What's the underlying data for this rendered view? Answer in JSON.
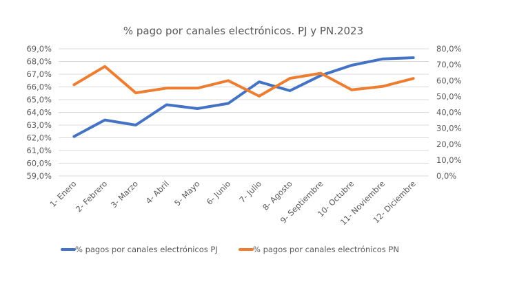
{
  "chart_data": {
    "type": "line",
    "title": "% pago por canales electrónicos. PJ y PN.2023",
    "xlabel": "",
    "ylabel": "",
    "categories": [
      "1- Enero",
      "2- Febrero",
      "3- Marzo",
      "4- Abril",
      "5- Mayo",
      "6- Junio",
      "7- Julio",
      "8- Agosto",
      "9- Septiembre",
      "10- Octubre",
      "11- Noviembre",
      "12- Diciembre"
    ],
    "series": [
      {
        "name": "% pagos por canales electrónicos PJ",
        "axis": "left",
        "color": "#4472C4",
        "values": [
          62.1,
          63.4,
          63.0,
          64.6,
          64.3,
          64.7,
          66.4,
          65.7,
          66.9,
          67.7,
          68.2,
          68.3
        ]
      },
      {
        "name": "% pagos por canales electrónicos PN",
        "axis": "right",
        "color": "#ED7D31",
        "values": [
          57.4,
          68.9,
          52.3,
          55.2,
          55.2,
          60.0,
          50.2,
          61.4,
          64.6,
          54.2,
          56.3,
          61.3
        ]
      }
    ],
    "y_left": {
      "ylim": [
        59,
        69
      ],
      "ticks": [
        69,
        68,
        67,
        66,
        65,
        64,
        63,
        62,
        61,
        60,
        59
      ],
      "tick_labels": [
        "69,0%",
        "68,0%",
        "67,0%",
        "66,0%",
        "65,0%",
        "64,0%",
        "63,0%",
        "62,0%",
        "61,0%",
        "60,0%",
        "59,0%"
      ]
    },
    "y_right": {
      "ylim": [
        0,
        80
      ],
      "ticks": [
        80,
        70,
        60,
        50,
        40,
        30,
        20,
        10,
        0
      ],
      "tick_labels": [
        "80,0%",
        "70,0%",
        "60,0%",
        "50,0%",
        "40,0%",
        "30,0%",
        "20,0%",
        "10,0%",
        "0,0%"
      ]
    },
    "grid": true,
    "legend_position": "bottom"
  }
}
